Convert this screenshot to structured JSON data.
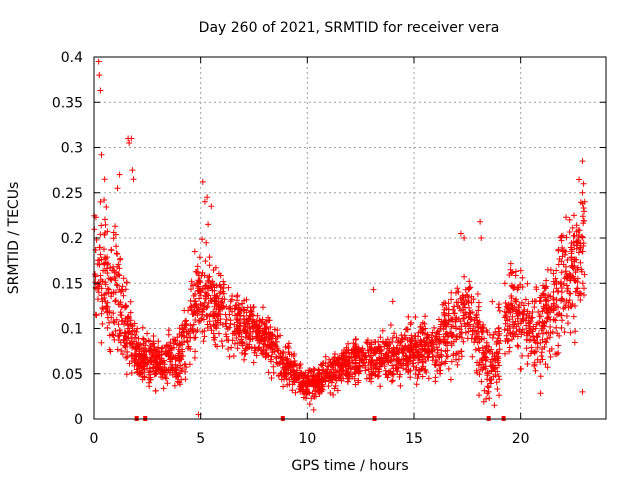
{
  "chart_data": {
    "type": "scatter",
    "title": "Day 260 of 2021, SRMTID for receiver vera",
    "xlabel": "GPS time / hours",
    "ylabel": "SRMTID / TECUs",
    "xlim": [
      0,
      24
    ],
    "ylim": [
      0,
      0.4
    ],
    "xticks": [
      0,
      5,
      10,
      15,
      20
    ],
    "xtick_labels": [
      "0",
      "5",
      "10",
      "15",
      "20"
    ],
    "yticks": [
      0,
      0.05,
      0.1,
      0.15,
      0.2,
      0.25,
      0.3,
      0.35,
      0.4
    ],
    "ytick_labels": [
      "0",
      "0.05",
      "0.1",
      "0.15",
      "0.2",
      "0.25",
      "0.3",
      "0.35",
      "0.4"
    ],
    "grid": true,
    "marker": "+",
    "series_color": "#ff0000",
    "seed": 260,
    "points_per_hour": 120,
    "trend": {
      "x": [
        0,
        0.5,
        1,
        1.5,
        2,
        3,
        4,
        5,
        6,
        7,
        8,
        9,
        10,
        11,
        12,
        13,
        14,
        15,
        16,
        17,
        17.5,
        18,
        18.5,
        19,
        19.5,
        20,
        21,
        22,
        22.5,
        23
      ],
      "y": [
        0.16,
        0.15,
        0.14,
        0.1,
        0.07,
        0.06,
        0.07,
        0.14,
        0.12,
        0.1,
        0.09,
        0.06,
        0.035,
        0.05,
        0.065,
        0.065,
        0.07,
        0.075,
        0.08,
        0.1,
        0.12,
        0.09,
        0.06,
        0.08,
        0.12,
        0.11,
        0.1,
        0.15,
        0.16,
        0.2
      ]
    },
    "spread": {
      "x": [
        0,
        1,
        2,
        3,
        5,
        6,
        8,
        10,
        12,
        15,
        17,
        18,
        19,
        20,
        22,
        23
      ],
      "y": [
        0.06,
        0.06,
        0.025,
        0.02,
        0.045,
        0.035,
        0.025,
        0.015,
        0.02,
        0.025,
        0.035,
        0.04,
        0.04,
        0.04,
        0.05,
        0.06
      ]
    },
    "gaps": [
      [
        19.05,
        19.25
      ]
    ],
    "outlier_points": [
      {
        "x": 0.22,
        "y": 0.395
      },
      {
        "x": 0.25,
        "y": 0.38
      },
      {
        "x": 0.3,
        "y": 0.363
      },
      {
        "x": 0.35,
        "y": 0.292
      },
      {
        "x": 0.5,
        "y": 0.265
      },
      {
        "x": 1.6,
        "y": 0.31
      },
      {
        "x": 1.65,
        "y": 0.305
      },
      {
        "x": 1.75,
        "y": 0.31
      },
      {
        "x": 1.8,
        "y": 0.275
      },
      {
        "x": 1.85,
        "y": 0.265
      },
      {
        "x": 1.1,
        "y": 0.255
      },
      {
        "x": 1.2,
        "y": 0.27
      },
      {
        "x": 5.1,
        "y": 0.262
      },
      {
        "x": 5.2,
        "y": 0.24
      },
      {
        "x": 5.3,
        "y": 0.245
      },
      {
        "x": 5.5,
        "y": 0.235
      },
      {
        "x": 5.35,
        "y": 0.215
      },
      {
        "x": 22.9,
        "y": 0.285
      },
      {
        "x": 22.95,
        "y": 0.26
      },
      {
        "x": 23.0,
        "y": 0.24
      },
      {
        "x": 22.9,
        "y": 0.25
      },
      {
        "x": 22.5,
        "y": 0.225
      },
      {
        "x": 22.3,
        "y": 0.22
      },
      {
        "x": 18.1,
        "y": 0.218
      },
      {
        "x": 18.15,
        "y": 0.2
      },
      {
        "x": 17.2,
        "y": 0.205
      },
      {
        "x": 17.35,
        "y": 0.2
      },
      {
        "x": 4.9,
        "y": 0.005
      },
      {
        "x": 10.3,
        "y": 0.01
      },
      {
        "x": 22.9,
        "y": 0.03
      },
      {
        "x": 13.1,
        "y": 0.143
      },
      {
        "x": 14.0,
        "y": 0.13
      }
    ],
    "bottom_markers_x": [
      2.0,
      2.4,
      8.85,
      13.15,
      18.5,
      19.2
    ]
  }
}
